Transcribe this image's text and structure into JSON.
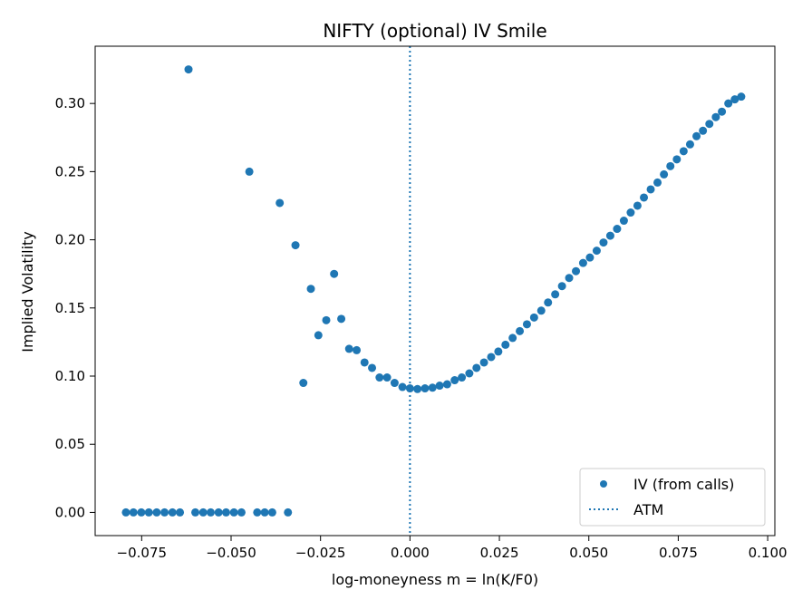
{
  "chart_data": {
    "type": "scatter",
    "title": "NIFTY (optional) IV Smile",
    "xlabel": "log-moneyness m = ln(K/F0)",
    "ylabel": "Implied Volatility",
    "xlim": [
      -0.088,
      0.102
    ],
    "ylim": [
      -0.017,
      0.342
    ],
    "xticks": [
      -0.075,
      -0.05,
      -0.025,
      0.0,
      0.025,
      0.05,
      0.075,
      0.1
    ],
    "xtick_labels": [
      "−0.075",
      "−0.050",
      "−0.025",
      "0.000",
      "0.025",
      "0.050",
      "0.075",
      "0.100"
    ],
    "yticks": [
      0.0,
      0.05,
      0.1,
      0.15,
      0.2,
      0.25,
      0.3
    ],
    "ytick_labels": [
      "0.00",
      "0.05",
      "0.10",
      "0.15",
      "0.20",
      "0.25",
      "0.30"
    ],
    "grid": false,
    "legend_position": "bottom-right",
    "series": [
      {
        "name": "IV (from calls)",
        "kind": "scatter",
        "color": "#1f77b4",
        "points": [
          [
            -0.0794,
            0.0
          ],
          [
            -0.0773,
            0.0
          ],
          [
            -0.0751,
            0.0
          ],
          [
            -0.073,
            0.0
          ],
          [
            -0.0708,
            0.0
          ],
          [
            -0.0686,
            0.0
          ],
          [
            -0.0664,
            0.0
          ],
          [
            -0.0643,
            0.0
          ],
          [
            -0.0619,
            0.325
          ],
          [
            -0.06,
            0.0
          ],
          [
            -0.0578,
            0.0
          ],
          [
            -0.0557,
            0.0
          ],
          [
            -0.0535,
            0.0
          ],
          [
            -0.0514,
            0.0
          ],
          [
            -0.0492,
            0.0
          ],
          [
            -0.0471,
            0.0
          ],
          [
            -0.0449,
            0.25
          ],
          [
            -0.0427,
            0.0
          ],
          [
            -0.0406,
            0.0
          ],
          [
            -0.0385,
            0.0
          ],
          [
            -0.0364,
            0.227
          ],
          [
            -0.0341,
            0.0
          ],
          [
            -0.032,
            0.196
          ],
          [
            -0.0298,
            0.095
          ],
          [
            -0.0277,
            0.164
          ],
          [
            -0.0256,
            0.13
          ],
          [
            -0.0234,
            0.141
          ],
          [
            -0.0212,
            0.175
          ],
          [
            -0.0192,
            0.142
          ],
          [
            -0.017,
            0.12
          ],
          [
            -0.0149,
            0.119
          ],
          [
            -0.0127,
            0.11
          ],
          [
            -0.0106,
            0.106
          ],
          [
            -0.0085,
            0.099
          ],
          [
            -0.0064,
            0.099
          ],
          [
            -0.0043,
            0.095
          ],
          [
            -0.0021,
            0.092
          ],
          [
            0.0,
            0.091
          ],
          [
            0.0021,
            0.0905
          ],
          [
            0.0042,
            0.091
          ],
          [
            0.0063,
            0.0915
          ],
          [
            0.0083,
            0.093
          ],
          [
            0.0104,
            0.094
          ],
          [
            0.0125,
            0.097
          ],
          [
            0.0145,
            0.099
          ],
          [
            0.0166,
            0.102
          ],
          [
            0.0186,
            0.106
          ],
          [
            0.0207,
            0.11
          ],
          [
            0.0227,
            0.114
          ],
          [
            0.0247,
            0.118
          ],
          [
            0.0267,
            0.123
          ],
          [
            0.0287,
            0.128
          ],
          [
            0.0307,
            0.133
          ],
          [
            0.0327,
            0.138
          ],
          [
            0.0347,
            0.143
          ],
          [
            0.0367,
            0.148
          ],
          [
            0.0386,
            0.154
          ],
          [
            0.0406,
            0.16
          ],
          [
            0.0425,
            0.166
          ],
          [
            0.0445,
            0.172
          ],
          [
            0.0464,
            0.177
          ],
          [
            0.0484,
            0.183
          ],
          [
            0.0503,
            0.187
          ],
          [
            0.0522,
            0.192
          ],
          [
            0.0541,
            0.198
          ],
          [
            0.056,
            0.203
          ],
          [
            0.0579,
            0.208
          ],
          [
            0.0598,
            0.214
          ],
          [
            0.0617,
            0.22
          ],
          [
            0.0636,
            0.225
          ],
          [
            0.0654,
            0.231
          ],
          [
            0.0673,
            0.237
          ],
          [
            0.0692,
            0.242
          ],
          [
            0.071,
            0.248
          ],
          [
            0.0728,
            0.254
          ],
          [
            0.0746,
            0.259
          ],
          [
            0.0765,
            0.265
          ],
          [
            0.0783,
            0.27
          ],
          [
            0.0801,
            0.276
          ],
          [
            0.0819,
            0.28
          ],
          [
            0.0837,
            0.285
          ],
          [
            0.0855,
            0.29
          ],
          [
            0.0872,
            0.294
          ],
          [
            0.089,
            0.3
          ],
          [
            0.0908,
            0.303
          ],
          [
            0.0926,
            0.305
          ]
        ]
      },
      {
        "name": "ATM",
        "kind": "vline",
        "x": 0.0,
        "color": "#1f77b4",
        "style": "dotted"
      }
    ]
  }
}
